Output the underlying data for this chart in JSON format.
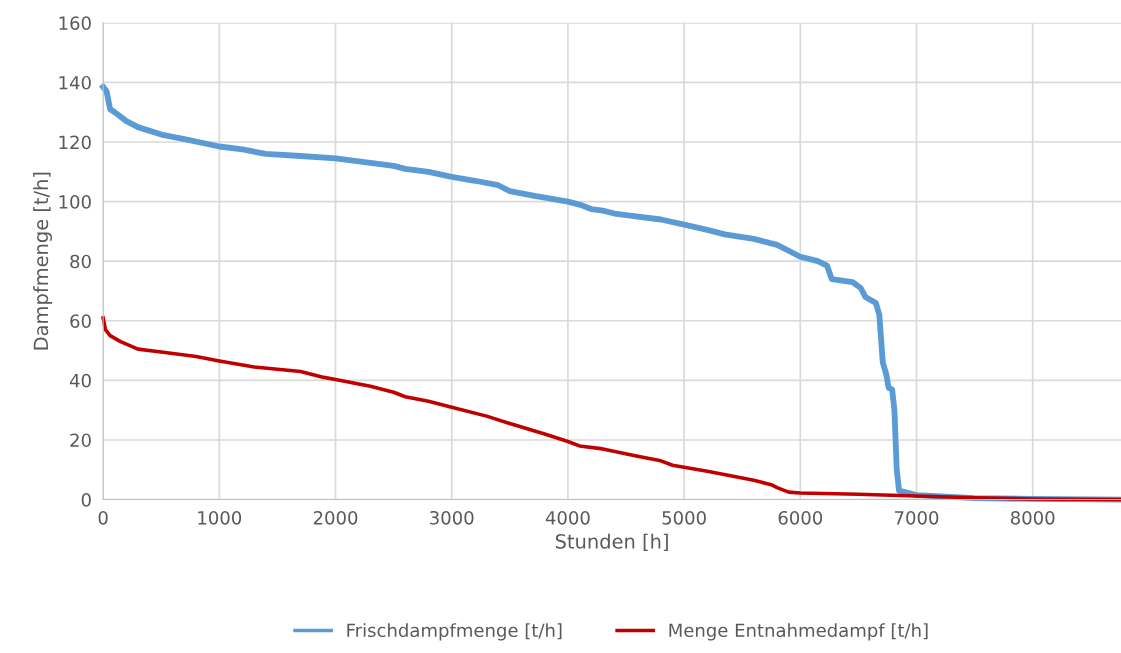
{
  "chart_data": {
    "type": "line",
    "xlabel": "Stunden [h]",
    "ylabel": "Dampfmenge [t/h]",
    "xlim": [
      0,
      8760
    ],
    "xticks": [
      0,
      1000,
      2000,
      3000,
      4000,
      5000,
      6000,
      7000,
      8000
    ],
    "ylim": [
      0,
      160
    ],
    "yticks": [
      0,
      20,
      40,
      60,
      80,
      100,
      120,
      140,
      160
    ],
    "grid": true,
    "legend": "bottom",
    "marker": "none",
    "line_style": "solid",
    "series": [
      {
        "name": "Frischdampfmenge [t/h]",
        "color": "#5b9bd5",
        "x": [
          0,
          30,
          60,
          100,
          200,
          300,
          500,
          700,
          1000,
          1200,
          1400,
          1700,
          2000,
          2200,
          2500,
          2600,
          2800,
          3000,
          3200,
          3400,
          3500,
          3700,
          4000,
          4100,
          4200,
          4300,
          4400,
          4500,
          4800,
          5000,
          5200,
          5350,
          5600,
          5800,
          5900,
          6000,
          6150,
          6230,
          6270,
          6450,
          6520,
          6560,
          6650,
          6680,
          6710,
          6740,
          6760,
          6790,
          6810,
          6830,
          6850,
          7000,
          7500,
          8000,
          8760
        ],
        "values": [
          138.5,
          137,
          131,
          130,
          127,
          125,
          122.5,
          121,
          118.5,
          117.5,
          116,
          115.3,
          114.5,
          113.5,
          112,
          111,
          110,
          108.3,
          107,
          105.5,
          103.5,
          102,
          100,
          99,
          97.5,
          97,
          96,
          95.5,
          94,
          92.3,
          90.5,
          89,
          87.5,
          85.5,
          83.5,
          81.5,
          80,
          78.5,
          74,
          73,
          71,
          68,
          66,
          62,
          46,
          42,
          37.5,
          37,
          30,
          10,
          3,
          1.5,
          0.5,
          0.2,
          0
        ]
      },
      {
        "name": "Menge Entnahmedampf [t/h]",
        "color": "#c00000",
        "x": [
          0,
          20,
          60,
          150,
          300,
          500,
          800,
          1000,
          1300,
          1700,
          1900,
          2000,
          2300,
          2500,
          2600,
          2800,
          3000,
          3300,
          3500,
          3800,
          4000,
          4100,
          4300,
          4600,
          4800,
          4900,
          5200,
          5400,
          5600,
          5750,
          5800,
          5900,
          6000,
          6500,
          7000,
          7500,
          8000,
          8760
        ],
        "values": [
          61,
          57,
          55,
          53,
          50.5,
          49.5,
          48,
          46.5,
          44.5,
          43,
          41,
          40.3,
          38,
          36,
          34.5,
          33,
          31,
          28,
          25.5,
          22,
          19.5,
          18,
          17,
          14.5,
          13,
          11.5,
          9.5,
          8,
          6.5,
          5,
          4,
          2.5,
          2.2,
          1.8,
          1.2,
          0.6,
          0.2,
          0
        ]
      }
    ]
  }
}
